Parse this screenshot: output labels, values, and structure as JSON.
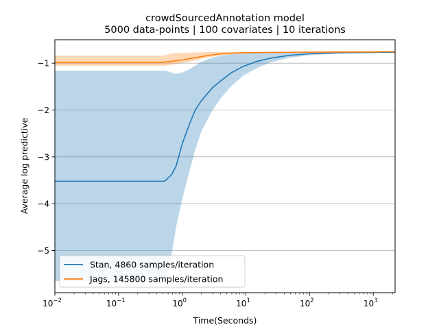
{
  "chart_data": {
    "type": "line",
    "title_line1": "crowdSourcedAnnotation model",
    "title_line2": "5000 data-points | 100 covariates | 10 iterations",
    "xlabel": "Time(Seconds)",
    "ylabel": "Average log predictive",
    "xscale": "log",
    "xlim": [
      0.01,
      2200
    ],
    "ylim": [
      -5.9,
      -0.5
    ],
    "xticks": [
      {
        "value": 0.01,
        "label": "10",
        "exp": "−2"
      },
      {
        "value": 0.1,
        "label": "10",
        "exp": "−1"
      },
      {
        "value": 1,
        "label": "10",
        "exp": "0"
      },
      {
        "value": 10,
        "label": "10",
        "exp": "1"
      },
      {
        "value": 100,
        "label": "10",
        "exp": "2"
      },
      {
        "value": 1000,
        "label": "10",
        "exp": "3"
      }
    ],
    "yticks": [
      {
        "value": -1,
        "label": "−1"
      },
      {
        "value": -2,
        "label": "−2"
      },
      {
        "value": -3,
        "label": "−3"
      },
      {
        "value": -4,
        "label": "−4"
      },
      {
        "value": -5,
        "label": "−5"
      }
    ],
    "grid": "horizontal",
    "legend_position": "lower-left",
    "series": [
      {
        "name": "Stan, 4860 samples/iteration",
        "color": "#1f77b4",
        "band_color": "#1f77b4",
        "band_opacity": 0.3,
        "points": [
          {
            "x": 0.01,
            "y": -3.52,
            "lo": -5.65,
            "hi": -1.16
          },
          {
            "x": 0.2,
            "y": -3.52,
            "lo": -5.65,
            "hi": -1.16
          },
          {
            "x": 0.52,
            "y": -3.52,
            "lo": -5.65,
            "hi": -1.16
          },
          {
            "x": 0.55,
            "y": -3.5,
            "lo": -5.6,
            "hi": -1.16
          },
          {
            "x": 0.68,
            "y": -3.38,
            "lo": -5.1,
            "hi": -1.2
          },
          {
            "x": 0.8,
            "y": -3.2,
            "lo": -4.5,
            "hi": -1.23
          },
          {
            "x": 1.0,
            "y": -2.72,
            "lo": -3.9,
            "hi": -1.2
          },
          {
            "x": 1.3,
            "y": -2.3,
            "lo": -3.3,
            "hi": -1.13
          },
          {
            "x": 1.6,
            "y": -2.0,
            "lo": -2.85,
            "hi": -1.05
          },
          {
            "x": 2.0,
            "y": -1.8,
            "lo": -2.45,
            "hi": -0.97
          },
          {
            "x": 3.0,
            "y": -1.52,
            "lo": -2.0,
            "hi": -0.88
          },
          {
            "x": 4.0,
            "y": -1.38,
            "lo": -1.75,
            "hi": -0.84
          },
          {
            "x": 6.0,
            "y": -1.2,
            "lo": -1.48,
            "hi": -0.81
          },
          {
            "x": 9.0,
            "y": -1.07,
            "lo": -1.27,
            "hi": -0.79
          },
          {
            "x": 15.0,
            "y": -0.96,
            "lo": -1.1,
            "hi": -0.78
          },
          {
            "x": 25.0,
            "y": -0.89,
            "lo": -0.98,
            "hi": -0.77
          },
          {
            "x": 50.0,
            "y": -0.83,
            "lo": -0.88,
            "hi": -0.76
          },
          {
            "x": 100.0,
            "y": -0.8,
            "lo": -0.83,
            "hi": -0.76
          },
          {
            "x": 300.0,
            "y": -0.78,
            "lo": -0.79,
            "hi": -0.75
          },
          {
            "x": 1000.0,
            "y": -0.77,
            "lo": -0.78,
            "hi": -0.75
          },
          {
            "x": 2200.0,
            "y": -0.765,
            "lo": -0.775,
            "hi": -0.75
          }
        ]
      },
      {
        "name": "Jags, 145800 samples/iteration",
        "color": "#ff7f0e",
        "band_color": "#ff7f0e",
        "band_opacity": 0.3,
        "points": [
          {
            "x": 0.01,
            "y": -0.98,
            "lo": -1.06,
            "hi": -0.84
          },
          {
            "x": 0.1,
            "y": -0.98,
            "lo": -1.06,
            "hi": -0.84
          },
          {
            "x": 0.5,
            "y": -0.98,
            "lo": -1.06,
            "hi": -0.84
          },
          {
            "x": 0.7,
            "y": -0.96,
            "lo": -1.03,
            "hi": -0.79
          },
          {
            "x": 1.0,
            "y": -0.93,
            "lo": -1.0,
            "hi": -0.78
          },
          {
            "x": 1.5,
            "y": -0.89,
            "lo": -0.95,
            "hi": -0.77
          },
          {
            "x": 2.0,
            "y": -0.86,
            "lo": -0.91,
            "hi": -0.77
          },
          {
            "x": 3.0,
            "y": -0.82,
            "lo": -0.86,
            "hi": -0.76
          },
          {
            "x": 5.0,
            "y": -0.79,
            "lo": -0.82,
            "hi": -0.76
          },
          {
            "x": 10.0,
            "y": -0.775,
            "lo": -0.79,
            "hi": -0.76
          },
          {
            "x": 30.0,
            "y": -0.77,
            "lo": -0.78,
            "hi": -0.76
          },
          {
            "x": 100.0,
            "y": -0.765,
            "lo": -0.775,
            "hi": -0.755
          },
          {
            "x": 1000.0,
            "y": -0.76,
            "lo": -0.77,
            "hi": -0.75
          },
          {
            "x": 1300.0,
            "y": -0.76,
            "lo": -0.77,
            "hi": -0.75
          }
        ]
      }
    ]
  },
  "extension": {
    "x_from": 1300.0,
    "y": -0.755,
    "color": "#ff7f0e"
  }
}
